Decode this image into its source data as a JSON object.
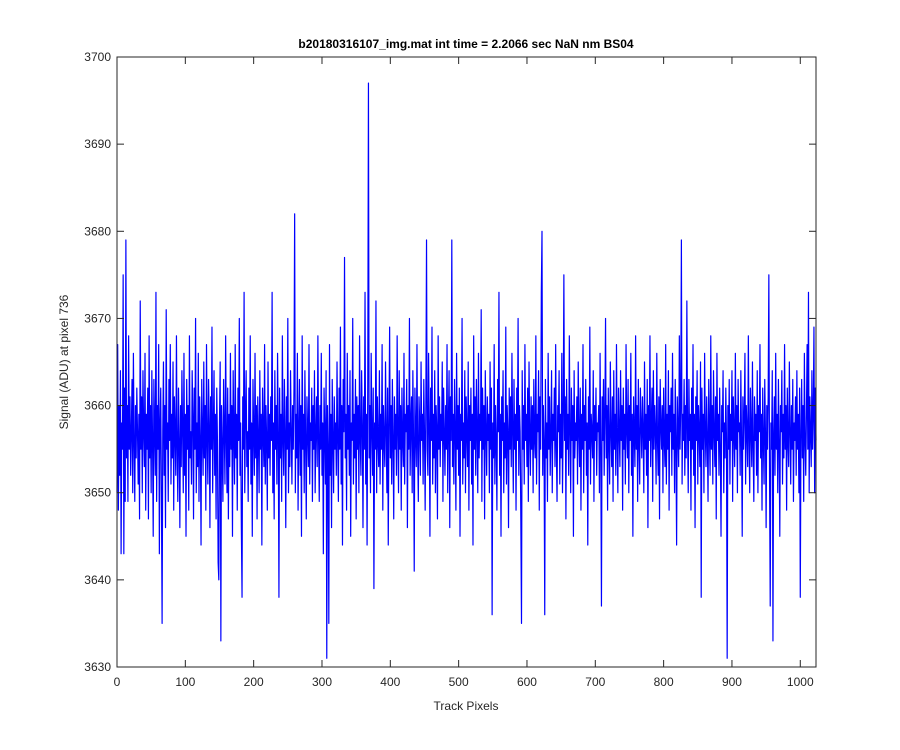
{
  "chart_data": {
    "type": "line",
    "title": "b20180316107_img.mat int time = 2.2066 sec  NaN nm BS04",
    "xlabel": "Track Pixels",
    "ylabel": "Signal (ADU) at pixel 736",
    "color": "#0000ff",
    "xlim": [
      0,
      1023
    ],
    "ylim": [
      3630,
      3700
    ],
    "xticks": [
      0,
      100,
      200,
      300,
      400,
      500,
      600,
      700,
      800,
      900,
      1000
    ],
    "yticks": [
      3630,
      3640,
      3650,
      3660,
      3670,
      3680,
      3690,
      3700
    ],
    "grid": false,
    "values": [
      3650,
      3667,
      3648,
      3660,
      3652,
      3664,
      3643,
      3658,
      3655,
      3675,
      3643,
      3662,
      3649,
      3679,
      3654,
      3660,
      3649,
      3668,
      3655,
      3661,
      3652,
      3657,
      3663,
      3650,
      3666,
      3656,
      3649,
      3660,
      3654,
      3662,
      3657,
      3651,
      3659,
      3647,
      3672,
      3655,
      3661,
      3650,
      3664,
      3657,
      3653,
      3666,
      3648,
      3659,
      3655,
      3662,
      3647,
      3668,
      3654,
      3660,
      3650,
      3664,
      3656,
      3645,
      3663,
      3657,
      3652,
      3673,
      3649,
      3660,
      3655,
      3667,
      3643,
      3658,
      3662,
      3650,
      3635,
      3657,
      3665,
      3652,
      3660,
      3646,
      3671,
      3655,
      3658,
      3649,
      3663,
      3656,
      3667,
      3651,
      3659,
      3654,
      3665,
      3648,
      3661,
      3657,
      3652,
      3668,
      3655,
      3649,
      3662,
      3656,
      3646,
      3660,
      3653,
      3664,
      3657,
      3650,
      3666,
      3652,
      3659,
      3645,
      3663,
      3655,
      3660,
      3648,
      3668,
      3654,
      3657,
      3651,
      3664,
      3659,
      3647,
      3662,
      3655,
      3670,
      3650,
      3658,
      3653,
      3666,
      3649,
      3661,
      3656,
      3644,
      3663,
      3657,
      3652,
      3665,
      3654,
      3660,
      3648,
      3667,
      3656,
      3651,
      3663,
      3658,
      3646,
      3661,
      3655,
      3669,
      3650,
      3657,
      3664,
      3652,
      3659,
      3647,
      3662,
      3656,
      3642,
      3640,
      3658,
      3665,
      3633,
      3660,
      3655,
      3649,
      3663,
      3657,
      3651,
      3668,
      3656,
      3650,
      3662,
      3647,
      3659,
      3653,
      3666,
      3655,
      3660,
      3645,
      3664,
      3657,
      3651,
      3667,
      3654,
      3659,
      3648,
      3662,
      3656,
      3670,
      3652,
      3658,
      3646,
      3638,
      3661,
      3655,
      3673,
      3650,
      3659,
      3664,
      3653,
      3657,
      3649,
      3662,
      3655,
      3668,
      3651,
      3658,
      3645,
      3663,
      3657,
      3652,
      3666,
      3654,
      3660,
      3647,
      3661,
      3656,
      3650,
      3664,
      3655,
      3659,
      3644,
      3662,
      3657,
      3653,
      3667,
      3651,
      3660,
      3656,
      3648,
      3665,
      3654,
      3659,
      3652,
      3661,
      3656,
      3673,
      3650,
      3658,
      3647,
      3664,
      3655,
      3660,
      3651,
      3666,
      3657,
      3638,
      3662,
      3654,
      3659,
      3649,
      3668,
      3656,
      3652,
      3663,
      3657,
      3646,
      3661,
      3655,
      3670,
      3650,
      3658,
      3653,
      3664,
      3657,
      3651,
      3660,
      3655,
      3662,
      3682,
      3650,
      3659,
      3654,
      3666,
      3648,
      3657,
      3663,
      3652,
      3660,
      3645,
      3668,
      3655,
      3659,
      3650,
      3664,
      3656,
      3647,
      3661,
      3657,
      3653,
      3667,
      3651,
      3658,
      3656,
      3662,
      3649,
      3660,
      3655,
      3664,
      3650,
      3657,
      3661,
      3653,
      3668,
      3656,
      3649,
      3660,
      3655,
      3666,
      3652,
      3658,
      3643,
      3662,
      3657,
      3651,
      3664,
      3631,
      3660,
      3655,
      3635,
      3667,
      3652,
      3659,
      3646,
      3663,
      3656,
      3650,
      3661,
      3655,
      3658,
      3652,
      3665,
      3656,
      3649,
      3662,
      3655,
      3669,
      3651,
      3660,
      3644,
      3663,
      3657,
      3677,
      3654,
      3659,
      3648,
      3666,
      3655,
      3660,
      3652,
      3664,
      3645,
      3658,
      3656,
      3670,
      3651,
      3659,
      3654,
      3663,
      3647,
      3661,
      3655,
      3660,
      3650,
      3668,
      3656,
      3652,
      3664,
      3658,
      3646,
      3661,
      3655,
      3673,
      3651,
      3659,
      3644,
      3663,
      3697,
      3654,
      3660,
      3650,
      3666,
      3657,
      3652,
      3662,
      3639,
      3658,
      3655,
      3672,
      3650,
      3661,
      3656,
      3653,
      3664,
      3651,
      3659,
      3655,
      3667,
      3648,
      3660,
      3656,
      3653,
      3665,
      3657,
      3650,
      3662,
      3644,
      3658,
      3669,
      3654,
      3660,
      3651,
      3663,
      3656,
      3647,
      3661,
      3655,
      3659,
      3652,
      3668,
      3657,
      3650,
      3664,
      3655,
      3660,
      3648,
      3662,
      3656,
      3653,
      3666,
      3651,
      3659,
      3657,
      3663,
      3646,
      3660,
      3655,
      3670,
      3652,
      3658,
      3661,
      3650,
      3664,
      3656,
      3641,
      3662,
      3657,
      3653,
      3667,
      3655,
      3649,
      3661,
      3658,
      3652,
      3665,
      3656,
      3659,
      3651,
      3663,
      3657,
      3648,
      3660,
      3679,
      3655,
      3652,
      3666,
      3658,
      3645,
      3662,
      3656,
      3669,
      3651,
      3659,
      3654,
      3664,
      3650,
      3660,
      3657,
      3647,
      3668,
      3655,
      3661,
      3653,
      3659,
      3656,
      3665,
      3649,
      3662,
      3657,
      3652,
      3660,
      3655,
      3667,
      3650,
      3658,
      3664,
      3646,
      3661,
      3656,
      3679,
      3653,
      3659,
      3651,
      3663,
      3657,
      3648,
      3666,
      3655,
      3660,
      3652,
      3662,
      3645,
      3659,
      3656,
      3670,
      3651,
      3658,
      3654,
      3664,
      3650,
      3661,
      3657,
      3653,
      3665,
      3648,
      3660,
      3656,
      3662,
      3651,
      3659,
      3644,
      3668,
      3655,
      3661,
      3652,
      3663,
      3657,
      3650,
      3666,
      3654,
      3659,
      3656,
      3671,
      3649,
      3662,
      3655,
      3660,
      3647,
      3664,
      3657,
      3652,
      3661,
      3656,
      3659,
      3650,
      3665,
      3655,
      3662,
      3636,
      3658,
      3654,
      3667,
      3651,
      3660,
      3656,
      3648,
      3663,
      3657,
      3673,
      3652,
      3659,
      3645,
      3661,
      3656,
      3664,
      3650,
      3658,
      3654,
      3669,
      3651,
      3660,
      3657,
      3646,
      3662,
      3655,
      3661,
      3653,
      3666,
      3657,
      3650,
      3663,
      3655,
      3659,
      3648,
      3662,
      3656,
      3670,
      3652,
      3660,
      3657,
      3647,
      3635,
      3664,
      3655,
      3660,
      3651,
      3667,
      3656,
      3659,
      3653,
      3662,
      3649,
      3665,
      3657,
      3652,
      3661,
      3655,
      3660,
      3650,
      3663,
      3656,
      3654,
      3668,
      3651,
      3659,
      3657,
      3664,
      3648,
      3661,
      3655,
      3673,
      3680,
      3652,
      3660,
      3656,
      3636,
      3663,
      3654,
      3658,
      3649,
      3666,
      3655,
      3661,
      3652,
      3657,
      3664,
      3650,
      3659,
      3656,
      3662,
      3653,
      3667,
      3655,
      3649,
      3660,
      3657,
      3664,
      3651,
      3659,
      3654,
      3666,
      3650,
      3658,
      3675,
      3656,
      3661,
      3647,
      3663,
      3655,
      3659,
      3652,
      3668,
      3657,
      3650,
      3662,
      3656,
      3660,
      3645,
      3664,
      3654,
      3658,
      3656,
      3661,
      3651,
      3665,
      3657,
      3653,
      3662,
      3648,
      3659,
      3655,
      3667,
      3650,
      3660,
      3656,
      3663,
      3652,
      3658,
      3644,
      3661,
      3655,
      3669,
      3651,
      3659,
      3657,
      3654,
      3664,
      3649,
      3660,
      3656,
      3662,
      3652,
      3658,
      3657,
      3660,
      3650,
      3666,
      3655,
      3637,
      3661,
      3656,
      3663,
      3652,
      3659,
      3670,
      3654,
      3660,
      3648,
      3662,
      3656,
      3651,
      3665,
      3657,
      3653,
      3661,
      3649,
      3664,
      3655,
      3659,
      3652,
      3667,
      3656,
      3650,
      3662,
      3657,
      3653,
      3664,
      3656,
      3660,
      3648,
      3662,
      3655,
      3659,
      3651,
      3667,
      3657,
      3654,
      3663,
      3650,
      3660,
      3656,
      3666,
      3652,
      3659,
      3645,
      3661,
      3657,
      3653,
      3668,
      3655,
      3660,
      3649,
      3663,
      3656,
      3651,
      3662,
      3658,
      3654,
      3661,
      3657,
      3650,
      3665,
      3655,
      3659,
      3652,
      3663,
      3646,
      3660,
      3656,
      3668,
      3653,
      3658,
      3662,
      3649,
      3664,
      3655,
      3660,
      3657,
      3651,
      3666,
      3656,
      3652,
      3661,
      3647,
      3663,
      3658,
      3655,
      3660,
      3650,
      3662,
      3656,
      3653,
      3667,
      3651,
      3659,
      3655,
      3664,
      3648,
      3660,
      3657,
      3662,
      3652,
      3666,
      3655,
      3659,
      3650,
      3663,
      3656,
      3644,
      3661,
      3657,
      3653,
      3668,
      3655,
      3660,
      3679,
      3651,
      3659,
      3656,
      3663,
      3652,
      3660,
      3654,
      3672,
      3657,
      3650,
      3663,
      3656,
      3659,
      3648,
      3662,
      3655,
      3667,
      3652,
      3659,
      3646,
      3661,
      3656,
      3664,
      3651,
      3660,
      3657,
      3653,
      3665,
      3638,
      3662,
      3655,
      3659,
      3650,
      3666,
      3657,
      3653,
      3661,
      3656,
      3649,
      3663,
      3657,
      3652,
      3668,
      3655,
      3660,
      3651,
      3664,
      3657,
      3653,
      3661,
      3647,
      3666,
      3656,
      3659,
      3652,
      3662,
      3655,
      3645,
      3660,
      3657,
      3664,
      3650,
      3658,
      3654,
      3662,
      3656,
      3631,
      3660,
      3655,
      3663,
      3651,
      3659,
      3656,
      3664,
      3649,
      3661,
      3657,
      3653,
      3666,
      3655,
      3660,
      3650,
      3663,
      3657,
      3658,
      3652,
      3664,
      3656,
      3645,
      3661,
      3655,
      3659,
      3666,
      3651,
      3660,
      3657,
      3653,
      3668,
      3656,
      3650,
      3662,
      3657,
      3653,
      3665,
      3655,
      3649,
      3661,
      3656,
      3659,
      3652,
      3664,
      3650,
      3660,
      3657,
      3667,
      3654,
      3659,
      3648,
      3662,
      3656,
      3651,
      3663,
      3657,
      3646,
      3660,
      3655,
      3661,
      3675,
      3652,
      3637,
      3658,
      3655,
      3664,
      3633,
      3657,
      3661,
      3652,
      3666,
      3655,
      3659,
      3650,
      3663,
      3656,
      3645,
      3660,
      3657,
      3664,
      3651,
      3659,
      3654,
      3667,
      3655,
      3660,
      3648,
      3662,
      3656,
      3653,
      3665,
      3657,
      3651,
      3660,
      3655,
      3663,
      3649,
      3658,
      3656,
      3661,
      3652,
      3664,
      3655,
      3659,
      3650,
      3662,
      3638,
      3657,
      3663,
      3654,
      3660,
      3649,
      3666,
      3656,
      3652,
      3659,
      3667,
      3655,
      3673,
      3650,
      3661,
      3657,
      3653,
      3664,
      3655,
      3659,
      3669,
      3650,
      3662,
      3656
    ]
  }
}
